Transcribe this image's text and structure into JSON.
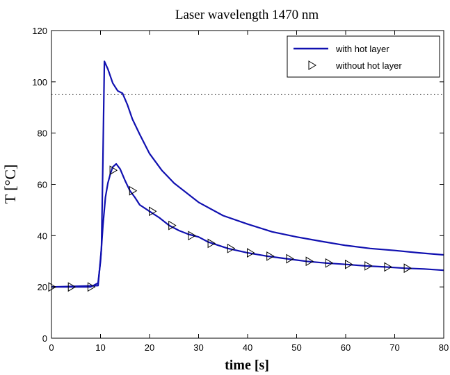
{
  "chart_data": {
    "type": "line",
    "title": "Laser wavelength 1470 nm",
    "xlabel": "time [s]",
    "ylabel": "T [°C]",
    "xlim": [
      0,
      80
    ],
    "ylim": [
      0,
      120
    ],
    "xticks": [
      0,
      10,
      20,
      30,
      40,
      50,
      60,
      70,
      80
    ],
    "yticks": [
      0,
      20,
      40,
      60,
      80,
      100,
      120
    ],
    "grid": false,
    "legend_position": "top-right",
    "reference_line": {
      "y": 95,
      "style": "dotted"
    },
    "series": [
      {
        "name": "with hot layer",
        "style": "solid-line",
        "color": "#1010b0",
        "x": [
          0,
          9.5,
          10.2,
          10.5,
          10.8,
          11.5,
          12.5,
          13.5,
          14.5,
          15.5,
          16.5,
          18,
          20,
          22.5,
          25,
          30,
          35,
          40,
          45,
          50,
          55,
          60,
          65,
          70,
          75,
          80
        ],
        "y": [
          20,
          20.5,
          35,
          70,
          108,
          105,
          99.5,
          96.5,
          95.5,
          91,
          85.5,
          79.5,
          72,
          65.5,
          60.5,
          53,
          47.8,
          44.5,
          41.5,
          39.5,
          37.8,
          36.2,
          35,
          34.2,
          33.3,
          32.5
        ]
      },
      {
        "name": "without hot layer",
        "style": "line-with-triangle-markers",
        "color": "#1010b0",
        "x": [
          0,
          4,
          8,
          9.5,
          10,
          10.5,
          11,
          11.5,
          12,
          12.5,
          13.2,
          14,
          15,
          16,
          17,
          18,
          20,
          22,
          24,
          26,
          28,
          30,
          32,
          36,
          40,
          44,
          48,
          52,
          56,
          60,
          64,
          68,
          72,
          76,
          80
        ],
        "y": [
          20,
          20,
          20,
          21.5,
          30,
          44,
          55,
          60.5,
          64,
          66.8,
          68,
          66,
          61.5,
          57.5,
          55,
          52,
          49.5,
          47,
          44,
          42,
          40.5,
          39.5,
          37.5,
          35,
          33.3,
          32,
          31,
          30,
          29.3,
          28.8,
          28.2,
          27.8,
          27.3,
          27,
          26.5
        ],
        "marker_x": [
          0,
          4,
          8,
          12.5,
          16.5,
          20.5,
          24.5,
          28.5,
          32.5,
          36.5,
          40.5,
          44.5,
          48.5,
          52.5,
          56.5,
          60.5,
          64.5,
          68.5,
          72.5
        ],
        "marker_y": [
          20,
          20,
          20,
          65.5,
          57.5,
          49.5,
          44,
          40,
          37,
          35,
          33.3,
          32,
          31,
          30,
          29.3,
          28.8,
          28.2,
          27.8,
          27.3
        ]
      }
    ]
  }
}
